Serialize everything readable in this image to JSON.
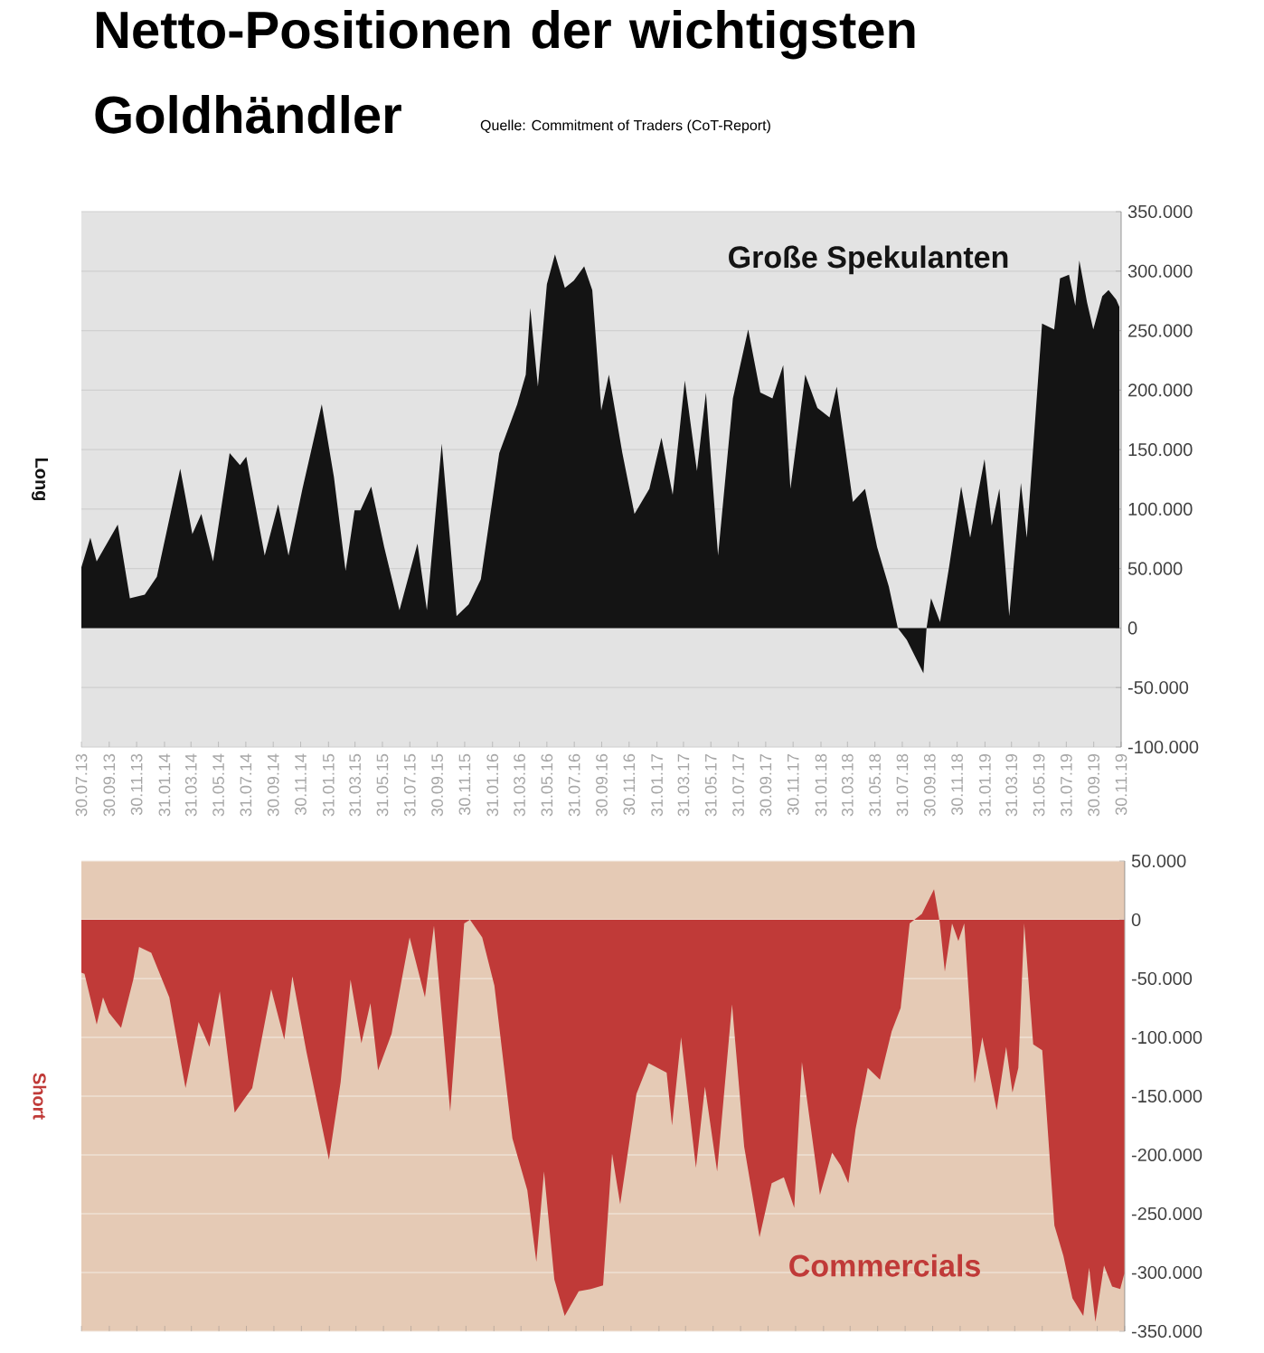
{
  "chart_data": [
    {
      "type": "area",
      "title": "Netto-Positionen der wichtigsten Goldhändler",
      "subtitle": "Quelle: Commitment of Traders (CoT-Report)",
      "ylabel": "Long",
      "grid": "y",
      "series": [
        {
          "name": "Große Spekulanten",
          "color": "#141414",
          "x": [
            "2013-07-30",
            "2013-08-19",
            "2013-09-02",
            "2013-10-19",
            "2013-11-15",
            "2013-12-18",
            "2014-01-14",
            "2014-03-07",
            "2014-04-03",
            "2014-04-23",
            "2014-05-19",
            "2014-06-25",
            "2014-07-18",
            "2014-08-01",
            "2014-09-11",
            "2014-10-11",
            "2014-11-03",
            "2014-12-04",
            "2015-01-16",
            "2015-02-12",
            "2015-03-10",
            "2015-03-30",
            "2015-04-12",
            "2015-05-06",
            "2015-06-04",
            "2015-07-08",
            "2015-08-17",
            "2015-09-07",
            "2015-10-10",
            "2015-11-12",
            "2015-12-09",
            "2016-01-05",
            "2016-02-15",
            "2016-03-26",
            "2016-04-14",
            "2016-04-24",
            "2016-05-11",
            "2016-05-31",
            "2016-06-18",
            "2016-07-10",
            "2016-07-30",
            "2016-08-22",
            "2016-09-09",
            "2016-09-29",
            "2016-10-16",
            "2016-11-15",
            "2016-12-12",
            "2017-01-14",
            "2017-02-10",
            "2017-03-07",
            "2017-04-03",
            "2017-04-30",
            "2017-05-20",
            "2017-06-16",
            "2017-07-19",
            "2017-08-22",
            "2017-09-18",
            "2017-10-15",
            "2017-11-08",
            "2017-11-24",
            "2017-12-27",
            "2018-01-23",
            "2018-02-19",
            "2018-03-07",
            "2018-03-23",
            "2018-04-12",
            "2018-05-09",
            "2018-06-05",
            "2018-07-01",
            "2018-07-21",
            "2018-08-10",
            "2018-09-16",
            "2018-09-23",
            "2018-10-03",
            "2018-10-23",
            "2018-11-12",
            "2018-12-09",
            "2018-12-29",
            "2019-01-12",
            "2019-01-30",
            "2019-02-15",
            "2019-03-04",
            "2019-03-26",
            "2019-04-21",
            "2019-05-04",
            "2019-06-07",
            "2019-07-04",
            "2019-07-17",
            "2019-08-06",
            "2019-08-20",
            "2019-08-29",
            "2019-09-15",
            "2019-09-29",
            "2019-10-19",
            "2019-11-02",
            "2019-11-19",
            "2019-11-26"
          ],
          "values": [
            51000,
            76000,
            56000,
            87000,
            25000,
            28000,
            43000,
            134000,
            79000,
            96000,
            56000,
            147000,
            137000,
            144000,
            61000,
            104000,
            61000,
            117000,
            188000,
            127000,
            48000,
            99000,
            99000,
            119000,
            68000,
            15000,
            71000,
            15000,
            155000,
            10000,
            20000,
            41000,
            147000,
            188000,
            213000,
            269000,
            203000,
            289000,
            314000,
            286000,
            292000,
            304000,
            284000,
            183000,
            213000,
            147000,
            96000,
            117000,
            160000,
            112000,
            208000,
            132000,
            198000,
            61000,
            193000,
            251000,
            198000,
            193000,
            221000,
            117000,
            213000,
            185000,
            177000,
            203000,
            160000,
            106000,
            117000,
            68000,
            35000,
            0,
            -10000,
            -38000,
            0,
            25000,
            5000,
            51000,
            119000,
            76000,
            106000,
            142000,
            86000,
            117000,
            10000,
            122000,
            76000,
            256000,
            251000,
            294000,
            297000,
            271000,
            309000,
            274000,
            251000,
            279000,
            284000,
            276000,
            270000
          ]
        }
      ],
      "xlim": [
        "2013-07-30",
        "2019-11-30"
      ],
      "xticks": [
        {
          "value": "2013-07-30",
          "label": "30.07.13"
        },
        {
          "value": "2013-09-30",
          "label": "30.09.13"
        },
        {
          "value": "2013-11-30",
          "label": "30.11.13"
        },
        {
          "value": "2014-01-31",
          "label": "31.01.14"
        },
        {
          "value": "2014-03-31",
          "label": "31.03.14"
        },
        {
          "value": "2014-05-31",
          "label": "31.05.14"
        },
        {
          "value": "2014-07-31",
          "label": "31.07.14"
        },
        {
          "value": "2014-09-30",
          "label": "30.09.14"
        },
        {
          "value": "2014-11-30",
          "label": "30.11.14"
        },
        {
          "value": "2015-01-31",
          "label": "31.01.15"
        },
        {
          "value": "2015-03-31",
          "label": "31.03.15"
        },
        {
          "value": "2015-05-31",
          "label": "31.05.15"
        },
        {
          "value": "2015-07-31",
          "label": "31.07.15"
        },
        {
          "value": "2015-09-30",
          "label": "30.09.15"
        },
        {
          "value": "2015-11-30",
          "label": "30.11.15"
        },
        {
          "value": "2016-01-31",
          "label": "31.01.16"
        },
        {
          "value": "2016-03-31",
          "label": "31.03.16"
        },
        {
          "value": "2016-05-31",
          "label": "31.05.16"
        },
        {
          "value": "2016-07-31",
          "label": "31.07.16"
        },
        {
          "value": "2016-09-30",
          "label": "30.09.16"
        },
        {
          "value": "2016-11-30",
          "label": "30.11.16"
        },
        {
          "value": "2017-01-31",
          "label": "31.01.17"
        },
        {
          "value": "2017-03-31",
          "label": "31.03.17"
        },
        {
          "value": "2017-05-31",
          "label": "31.05.17"
        },
        {
          "value": "2017-07-31",
          "label": "31.07.17"
        },
        {
          "value": "2017-09-30",
          "label": "30.09.17"
        },
        {
          "value": "2017-11-30",
          "label": "30.11.17"
        },
        {
          "value": "2018-01-31",
          "label": "31.01.18"
        },
        {
          "value": "2018-03-31",
          "label": "31.03.18"
        },
        {
          "value": "2018-05-31",
          "label": "31.05.18"
        },
        {
          "value": "2018-07-31",
          "label": "31.07.18"
        },
        {
          "value": "2018-09-30",
          "label": "30.09.18"
        },
        {
          "value": "2018-11-30",
          "label": "30.11.18"
        },
        {
          "value": "2019-01-31",
          "label": "31.01.19"
        },
        {
          "value": "2019-03-31",
          "label": "31.03.19"
        },
        {
          "value": "2019-05-31",
          "label": "31.05.19"
        },
        {
          "value": "2019-07-31",
          "label": "31.07.19"
        },
        {
          "value": "2019-09-30",
          "label": "30.09.19"
        },
        {
          "value": "2019-11-30",
          "label": "30.11.19"
        }
      ],
      "ylim": [
        -100000,
        350000
      ],
      "yticks": [
        {
          "value": -100000,
          "label": "-100.000"
        },
        {
          "value": -50000,
          "label": "-50.000"
        },
        0,
        {
          "value": 50000,
          "label": "50.000"
        },
        {
          "value": 100000,
          "label": "100.000"
        },
        {
          "value": 150000,
          "label": "150.000"
        },
        {
          "value": 200000,
          "label": "200.000"
        },
        {
          "value": 250000,
          "label": "250.000"
        },
        {
          "value": 300000,
          "label": "300.000"
        },
        {
          "value": 350000,
          "label": "350.000"
        }
      ]
    },
    {
      "type": "area",
      "ylabel": "Short",
      "grid": "y",
      "tick_labels": "y",
      "series": [
        {
          "name": "Commercials",
          "color": "#c03a38",
          "x": [
            "2013-07-30",
            "2013-08-06",
            "2013-09-02",
            "2013-09-16",
            "2013-09-29",
            "2013-10-26",
            "2013-11-22",
            "2013-12-05",
            "2014-01-01",
            "2014-02-10",
            "2014-03-18",
            "2014-04-16",
            "2014-05-10",
            "2014-06-02",
            "2014-07-05",
            "2014-07-25",
            "2014-08-13",
            "2014-09-24",
            "2014-10-23",
            "2014-11-10",
            "2014-12-11",
            "2015-01-30",
            "2015-02-25",
            "2015-03-19",
            "2015-04-12",
            "2015-05-02",
            "2015-05-19",
            "2015-06-18",
            "2015-07-28",
            "2015-08-31",
            "2015-09-20",
            "2015-10-26",
            "2015-11-26",
            "2015-12-09",
            "2016-01-05",
            "2016-02-01",
            "2016-03-12",
            "2016-04-14",
            "2016-05-04",
            "2016-05-21",
            "2016-06-13",
            "2016-07-06",
            "2016-08-06",
            "2016-09-02",
            "2016-09-29",
            "2016-10-19",
            "2016-11-06",
            "2016-12-12",
            "2017-01-08",
            "2017-02-17",
            "2017-03-01",
            "2017-03-21",
            "2017-04-23",
            "2017-05-13",
            "2017-06-09",
            "2017-07-12",
            "2017-08-08",
            "2017-09-11",
            "2017-10-08",
            "2017-11-04",
            "2017-11-27",
            "2017-12-14",
            "2018-01-23",
            "2018-02-19",
            "2018-03-10",
            "2018-03-27",
            "2018-04-12",
            "2018-05-09",
            "2018-06-05",
            "2018-07-01",
            "2018-07-21",
            "2018-08-10",
            "2018-09-06",
            "2018-10-03",
            "2018-10-16",
            "2018-10-27",
            "2018-11-12",
            "2018-11-26",
            "2018-12-09",
            "2019-01-01",
            "2019-01-18",
            "2019-02-19",
            "2019-03-12",
            "2019-03-26",
            "2019-04-08",
            "2019-04-21",
            "2019-05-11",
            "2019-05-31",
            "2019-06-27",
            "2019-07-17",
            "2019-08-06",
            "2019-08-30",
            "2019-09-12",
            "2019-09-26",
            "2019-10-15",
            "2019-11-02",
            "2019-11-20",
            "2019-11-29"
          ],
          "values": [
            -45000,
            -46000,
            -89000,
            -66000,
            -79000,
            -92000,
            -51000,
            -23000,
            -28000,
            -66000,
            -143000,
            -87000,
            -108000,
            -61000,
            -164000,
            -153000,
            -143000,
            -59000,
            -102000,
            -48000,
            -112000,
            -204000,
            -138000,
            -51000,
            -105000,
            -71000,
            -128000,
            -97000,
            -15000,
            -66000,
            -5000,
            -163000,
            -3000,
            0,
            -15000,
            -56000,
            -186000,
            -230000,
            -291000,
            -214000,
            -306000,
            -337000,
            -316000,
            -314000,
            -311000,
            -199000,
            -242000,
            -148000,
            -122000,
            -130000,
            -175000,
            -100000,
            -211000,
            -142000,
            -214000,
            -72000,
            -193000,
            -270000,
            -224000,
            -219000,
            -245000,
            -121000,
            -234000,
            -198000,
            -209000,
            -224000,
            -178000,
            -126000,
            -136000,
            -95000,
            -75000,
            -3000,
            5000,
            26000,
            -3000,
            -44000,
            -3000,
            -18000,
            -3000,
            -139000,
            -100000,
            -162000,
            -108000,
            -147000,
            -126000,
            -3000,
            -106000,
            -111000,
            -260000,
            -286000,
            -322000,
            -337000,
            -296000,
            -342000,
            -294000,
            -312000,
            -314000,
            -301000
          ]
        }
      ],
      "xlim": [
        "2013-07-30",
        "2019-11-30"
      ],
      "xticks": [
        {
          "value": "2013-07-30",
          "label": null
        },
        {
          "value": "2013-09-30",
          "label": null
        },
        {
          "value": "2013-11-30",
          "label": null
        },
        {
          "value": "2014-01-31",
          "label": null
        },
        {
          "value": "2014-03-31",
          "label": null
        },
        {
          "value": "2014-05-31",
          "label": null
        },
        {
          "value": "2014-07-31",
          "label": null
        },
        {
          "value": "2014-09-30",
          "label": null
        },
        {
          "value": "2014-11-30",
          "label": null
        },
        {
          "value": "2015-01-31",
          "label": null
        },
        {
          "value": "2015-03-31",
          "label": null
        },
        {
          "value": "2015-05-31",
          "label": null
        },
        {
          "value": "2015-07-31",
          "label": null
        },
        {
          "value": "2015-09-30",
          "label": null
        },
        {
          "value": "2015-11-30",
          "label": null
        },
        {
          "value": "2016-01-31",
          "label": null
        },
        {
          "value": "2016-03-31",
          "label": null
        },
        {
          "value": "2016-05-31",
          "label": null
        },
        {
          "value": "2016-07-31",
          "label": null
        },
        {
          "value": "2016-09-30",
          "label": null
        },
        {
          "value": "2016-11-30",
          "label": null
        },
        {
          "value": "2017-01-31",
          "label": null
        },
        {
          "value": "2017-03-31",
          "label": null
        },
        {
          "value": "2017-05-31",
          "label": null
        },
        {
          "value": "2017-07-31",
          "label": null
        },
        {
          "value": "2017-09-30",
          "label": null
        },
        {
          "value": "2017-11-30",
          "label": null
        },
        {
          "value": "2018-01-31",
          "label": null
        },
        {
          "value": "2018-03-31",
          "label": null
        },
        {
          "value": "2018-05-31",
          "label": null
        },
        {
          "value": "2018-07-31",
          "label": null
        },
        {
          "value": "2018-09-30",
          "label": null
        },
        {
          "value": "2018-11-30",
          "label": null
        },
        {
          "value": "2019-01-31",
          "label": null
        },
        {
          "value": "2019-03-31",
          "label": null
        },
        {
          "value": "2019-05-31",
          "label": null
        },
        {
          "value": "2019-07-31",
          "label": null
        },
        {
          "value": "2019-09-30",
          "label": null
        },
        {
          "value": "2019-11-30",
          "label": null
        }
      ],
      "ylim": [
        -350000,
        50000
      ],
      "yticks": [
        {
          "value": -350000,
          "label": "-350.000"
        },
        {
          "value": -300000,
          "label": "-300.000"
        },
        {
          "value": -250000,
          "label": "-250.000"
        },
        {
          "value": -200000,
          "label": "-200.000"
        },
        {
          "value": -150000,
          "label": "-150.000"
        },
        {
          "value": -100000,
          "label": "-100.000"
        },
        {
          "value": -50000,
          "label": "-50.000"
        },
        0,
        {
          "value": 50000,
          "label": "50.000"
        }
      ]
    }
  ]
}
